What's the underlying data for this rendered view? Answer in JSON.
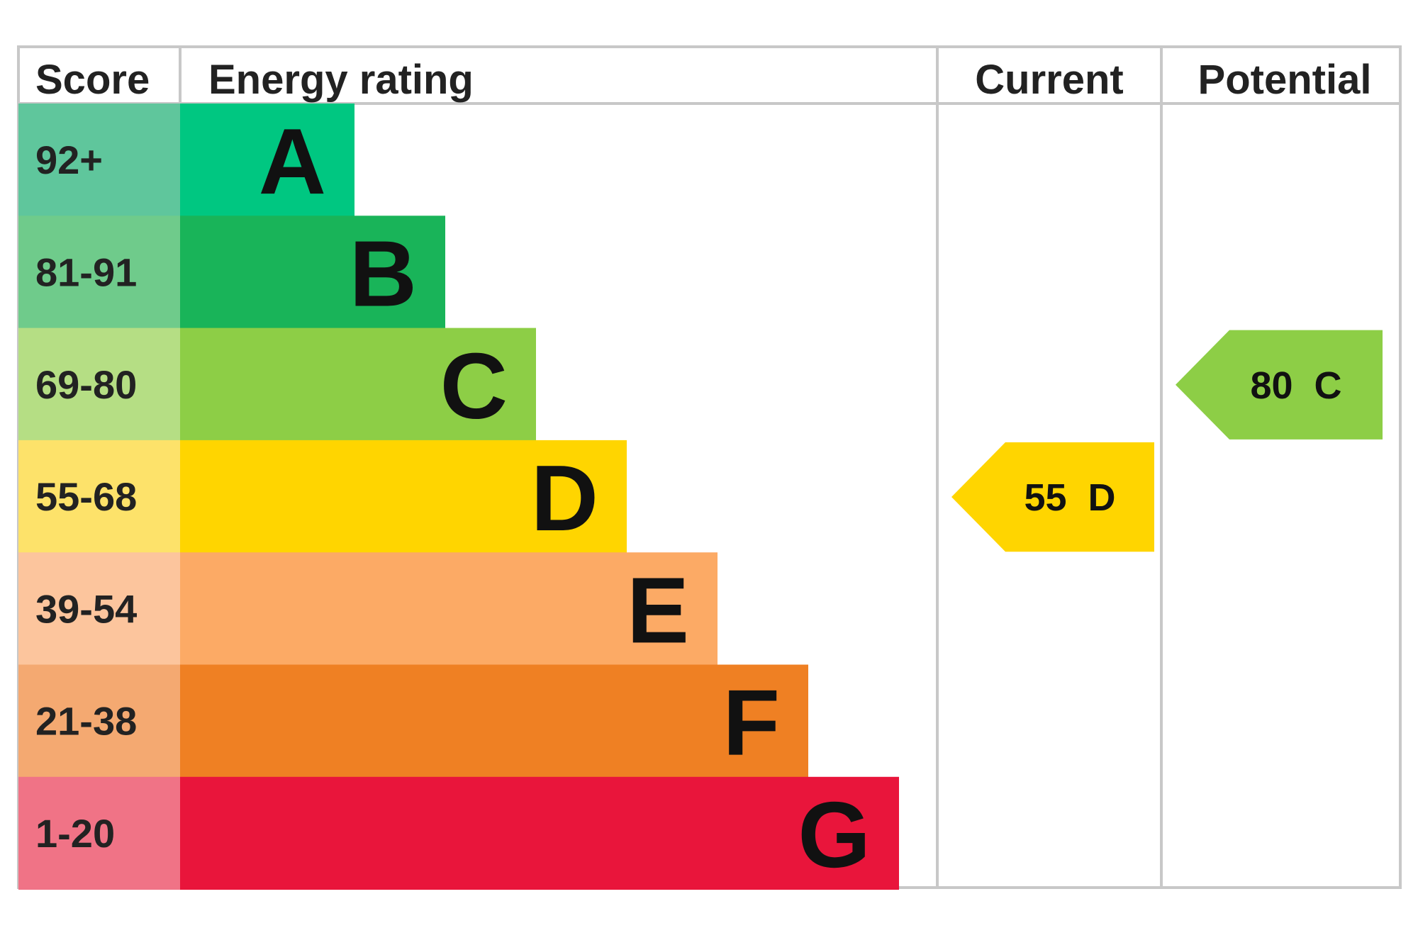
{
  "headers": {
    "score": "Score",
    "rating": "Energy rating",
    "current": "Current",
    "potential": "Potential"
  },
  "chart_data": {
    "type": "bar",
    "categories": [
      "A",
      "B",
      "C",
      "D",
      "E",
      "F",
      "G"
    ],
    "score_ranges": [
      "92+",
      "81-91",
      "69-80",
      "55-68",
      "39-54",
      "21-38",
      "1-20"
    ],
    "band_colors": [
      "#00c781",
      "#19b459",
      "#8dce46",
      "#ffd500",
      "#fcaa65",
      "#ef8023",
      "#e9153b"
    ],
    "score_colors": [
      "#5fc69c",
      "#6fcb8b",
      "#b5de84",
      "#fde26a",
      "#fcc59d",
      "#f4a971",
      "#f07386"
    ],
    "current": {
      "value": 55,
      "band": "D",
      "label": "55  D",
      "color": "#ffd500"
    },
    "potential": {
      "value": 80,
      "band": "C",
      "label": "80  C",
      "color": "#8dce46"
    }
  }
}
